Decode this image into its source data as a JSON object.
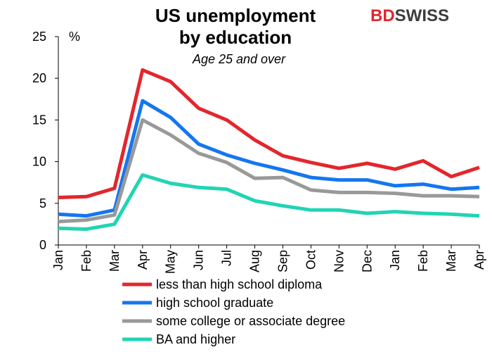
{
  "brand": {
    "logo_bd": "BD",
    "logo_swiss": "SWISS",
    "accent": "#e3262d"
  },
  "chart_data": {
    "type": "line",
    "title_line1": "US unemployment",
    "title_line2": "by education",
    "subtitle": "Age 25 and over",
    "ylabel": "%",
    "ylim": [
      0,
      25
    ],
    "yticks": [
      0,
      5,
      10,
      15,
      20,
      25
    ],
    "grid": false,
    "legend_position": "bottom",
    "categories": [
      "Jan",
      "Feb",
      "Mar",
      "Apr",
      "May",
      "Jun",
      "Jul",
      "Aug",
      "Sep",
      "Oct",
      "Nov",
      "Dec",
      "Jan",
      "Feb",
      "Mar",
      "Apr"
    ],
    "series": [
      {
        "name": "less than high school diploma",
        "color": "#e3262d",
        "values": [
          5.7,
          5.8,
          6.8,
          21.0,
          19.6,
          16.4,
          15.0,
          12.6,
          10.7,
          9.9,
          9.2,
          9.8,
          9.1,
          10.1,
          8.2,
          9.3
        ]
      },
      {
        "name": "high school graduate",
        "color": "#1476f0",
        "values": [
          3.7,
          3.5,
          4.2,
          17.3,
          15.3,
          12.1,
          10.8,
          9.8,
          9.0,
          8.1,
          7.8,
          7.8,
          7.1,
          7.3,
          6.7,
          6.9
        ]
      },
      {
        "name": "some college or associate degree",
        "color": "#999999",
        "values": [
          2.8,
          3.0,
          3.6,
          15.0,
          13.2,
          11.0,
          9.9,
          8.0,
          8.1,
          6.6,
          6.3,
          6.3,
          6.2,
          5.9,
          5.9,
          5.8
        ]
      },
      {
        "name": "BA and higher",
        "color": "#21d4b4",
        "values": [
          2.0,
          1.9,
          2.5,
          8.4,
          7.4,
          6.9,
          6.7,
          5.3,
          4.7,
          4.2,
          4.2,
          3.8,
          4.0,
          3.8,
          3.7,
          3.5
        ]
      }
    ]
  }
}
